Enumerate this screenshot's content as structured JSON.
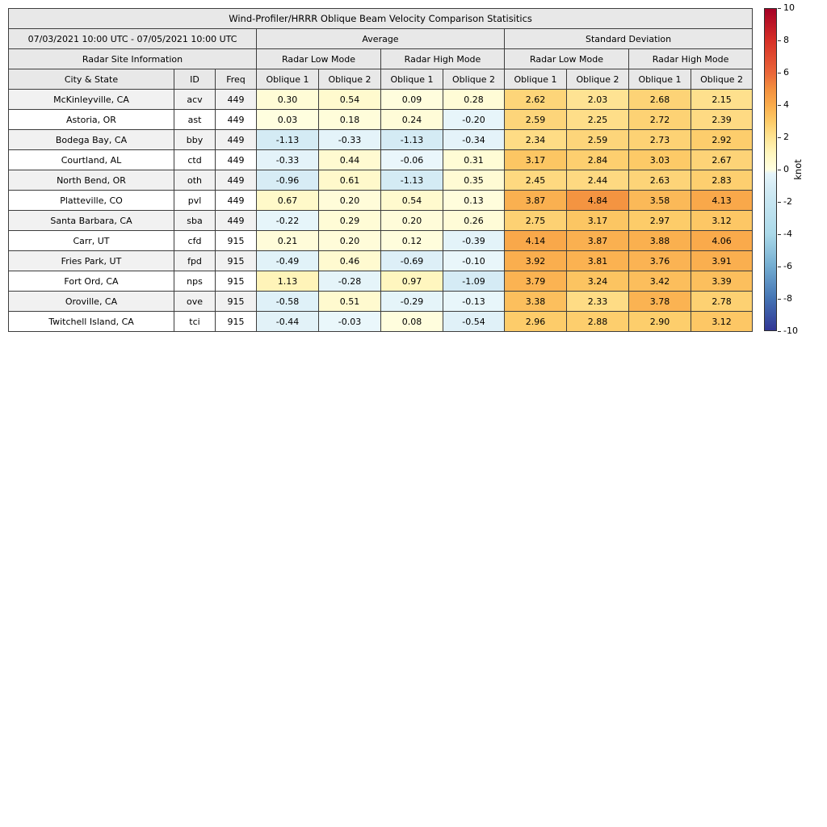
{
  "header": {
    "date_range": "07/03/2021 10:00 UTC - 07/05/2021 10:00 UTC",
    "average_label": "Average",
    "std_label": "Standard Deviation",
    "site_info_label": "Radar Site Information",
    "mode_labels": [
      "Radar Low Mode",
      "Radar High Mode",
      "Radar Low Mode",
      "Radar High Mode"
    ],
    "col_labels": [
      "City & State",
      "ID",
      "Freq",
      "Oblique 1",
      "Oblique 2",
      "Oblique 1",
      "Oblique 2",
      "Oblique 1",
      "Oblique 2",
      "Oblique 1",
      "Oblique 2"
    ]
  },
  "chart_data": {
    "type": "heatmap",
    "title": "Wind-Profiler/HRRR Oblique Beam Velocity Comparison Statisitics",
    "unit": "knot",
    "colorbar": {
      "label": "knot",
      "min": -10,
      "max": 10,
      "ticks": [
        10,
        8,
        6,
        4,
        2,
        0,
        -2,
        -4,
        -6,
        -8,
        -10
      ]
    },
    "columns": [
      "City & State",
      "ID",
      "Freq",
      "Avg Low Oblique 1",
      "Avg Low Oblique 2",
      "Avg High Oblique 1",
      "Avg High Oblique 2",
      "Std Low Oblique 1",
      "Std Low Oblique 2",
      "Std High Oblique 1",
      "Std High Oblique 2"
    ],
    "rows": [
      {
        "city": "McKinleyville, CA",
        "id": "acv",
        "freq": "449",
        "values": [
          0.3,
          0.54,
          0.09,
          0.28,
          2.62,
          2.03,
          2.68,
          2.15
        ]
      },
      {
        "city": "Astoria, OR",
        "id": "ast",
        "freq": "449",
        "values": [
          0.03,
          0.18,
          0.24,
          -0.2,
          2.59,
          2.25,
          2.72,
          2.39
        ]
      },
      {
        "city": "Bodega Bay, CA",
        "id": "bby",
        "freq": "449",
        "values": [
          -1.13,
          -0.33,
          -1.13,
          -0.34,
          2.34,
          2.59,
          2.73,
          2.92
        ]
      },
      {
        "city": "Courtland, AL",
        "id": "ctd",
        "freq": "449",
        "values": [
          -0.33,
          0.44,
          -0.06,
          0.31,
          3.17,
          2.84,
          3.03,
          2.67
        ]
      },
      {
        "city": "North Bend, OR",
        "id": "oth",
        "freq": "449",
        "values": [
          -0.96,
          0.61,
          -1.13,
          0.35,
          2.45,
          2.44,
          2.63,
          2.83
        ]
      },
      {
        "city": "Platteville, CO",
        "id": "pvl",
        "freq": "449",
        "values": [
          0.67,
          0.2,
          0.54,
          0.13,
          3.87,
          4.84,
          3.58,
          4.13
        ]
      },
      {
        "city": "Santa Barbara, CA",
        "id": "sba",
        "freq": "449",
        "values": [
          -0.22,
          0.29,
          0.2,
          0.26,
          2.75,
          3.17,
          2.97,
          3.12
        ]
      },
      {
        "city": "Carr, UT",
        "id": "cfd",
        "freq": "915",
        "values": [
          0.21,
          0.2,
          0.12,
          -0.39,
          4.14,
          3.87,
          3.88,
          4.06
        ]
      },
      {
        "city": "Fries Park, UT",
        "id": "fpd",
        "freq": "915",
        "values": [
          -0.49,
          0.46,
          -0.69,
          -0.1,
          3.92,
          3.81,
          3.76,
          3.91
        ]
      },
      {
        "city": "Fort Ord, CA",
        "id": "nps",
        "freq": "915",
        "values": [
          1.13,
          -0.28,
          0.97,
          -1.09,
          3.79,
          3.24,
          3.42,
          3.39
        ]
      },
      {
        "city": "Oroville, CA",
        "id": "ove",
        "freq": "915",
        "values": [
          -0.58,
          0.51,
          -0.29,
          -0.13,
          3.38,
          2.33,
          3.78,
          2.78
        ]
      },
      {
        "city": "Twitchell Island, CA",
        "id": "tci",
        "freq": "915",
        "values": [
          -0.44,
          -0.03,
          0.08,
          -0.54,
          2.96,
          2.88,
          2.9,
          3.12
        ]
      }
    ]
  }
}
